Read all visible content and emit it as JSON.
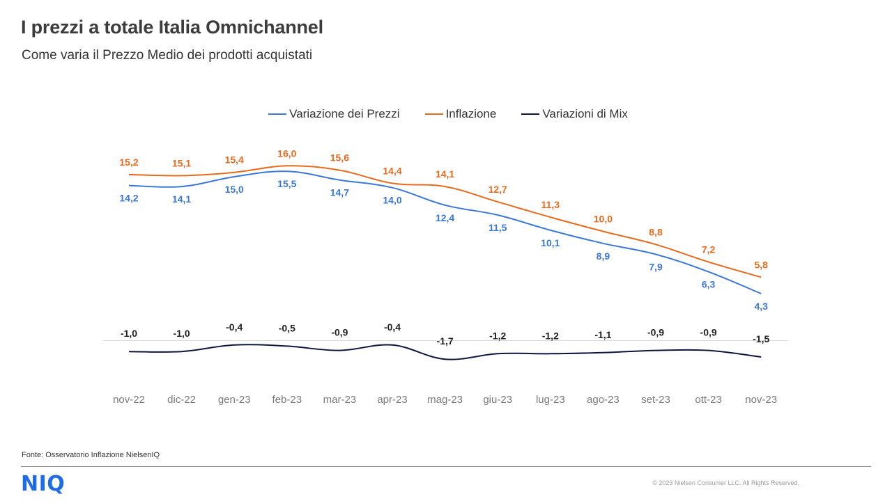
{
  "header": {
    "title": "I prezzi a totale Italia Omnichannel",
    "subtitle": "Come varia il Prezzo  Medio dei prodotti acquistati"
  },
  "legend": {
    "placement": "top-center",
    "items": [
      {
        "label": "Variazione dei Prezzi",
        "color": "#3a78d8"
      },
      {
        "label": "Inflazione",
        "color": "#e86a1c"
      },
      {
        "label": "Variazioni di Mix",
        "color": "#0c1740"
      }
    ]
  },
  "chart_data": {
    "type": "line",
    "title": "",
    "xlabel": "",
    "ylabel": "",
    "grid": false,
    "smooth": true,
    "categories": [
      "nov-22",
      "dic-22",
      "gen-23",
      "feb-23",
      "mar-23",
      "apr-23",
      "mag-23",
      "giu-23",
      "lug-23",
      "ago-23",
      "set-23",
      "ott-23",
      "nov-23"
    ],
    "series": [
      {
        "name": "Variazione dei Prezzi",
        "color": "#3a78d8",
        "values": [
          14.2,
          14.1,
          15.0,
          15.5,
          14.7,
          14.0,
          12.4,
          11.5,
          10.1,
          8.9,
          7.9,
          6.3,
          4.3
        ],
        "labels": [
          "14,2",
          "14,1",
          "15,0",
          "15,5",
          "14,7",
          "14,0",
          "12,4",
          "11,5",
          "10,1",
          "8,9",
          "7,9",
          "6,3",
          "4,3"
        ]
      },
      {
        "name": "Inflazione",
        "color": "#e86a1c",
        "values": [
          15.2,
          15.1,
          15.4,
          16.0,
          15.6,
          14.4,
          14.1,
          12.7,
          11.3,
          10.0,
          8.8,
          7.2,
          5.8
        ],
        "labels": [
          "15,2",
          "15,1",
          "15,4",
          "16,0",
          "15,6",
          "14,4",
          "14,1",
          "12,7",
          "11,3",
          "10,0",
          "8,8",
          "7,2",
          "5,8"
        ]
      },
      {
        "name": "Variazioni di Mix",
        "color": "#0c1740",
        "values": [
          -1.0,
          -1.0,
          -0.4,
          -0.5,
          -0.9,
          -0.4,
          -1.7,
          -1.2,
          -1.2,
          -1.1,
          -0.9,
          -0.9,
          -1.5
        ],
        "labels": [
          "-1,0",
          "-1,0",
          "-0,4",
          "-0,5",
          "-0,9",
          "-0,4",
          "-1,7",
          "-1,2",
          "-1,2",
          "-1,1",
          "-0,9",
          "-0,9",
          "-1,5"
        ]
      }
    ],
    "zero_line": true
  },
  "footer": {
    "source": "Fonte: Osservatorio Inflazione NielsenIQ",
    "logo_text": "NIQ",
    "copyright": "© 2023  Nielsen Consumer LLC. All Rights Reserved."
  },
  "colors": {
    "brand": "#1f6de6",
    "axis_text": "#7a7a7a",
    "zero_line": "#d9d9d9"
  }
}
